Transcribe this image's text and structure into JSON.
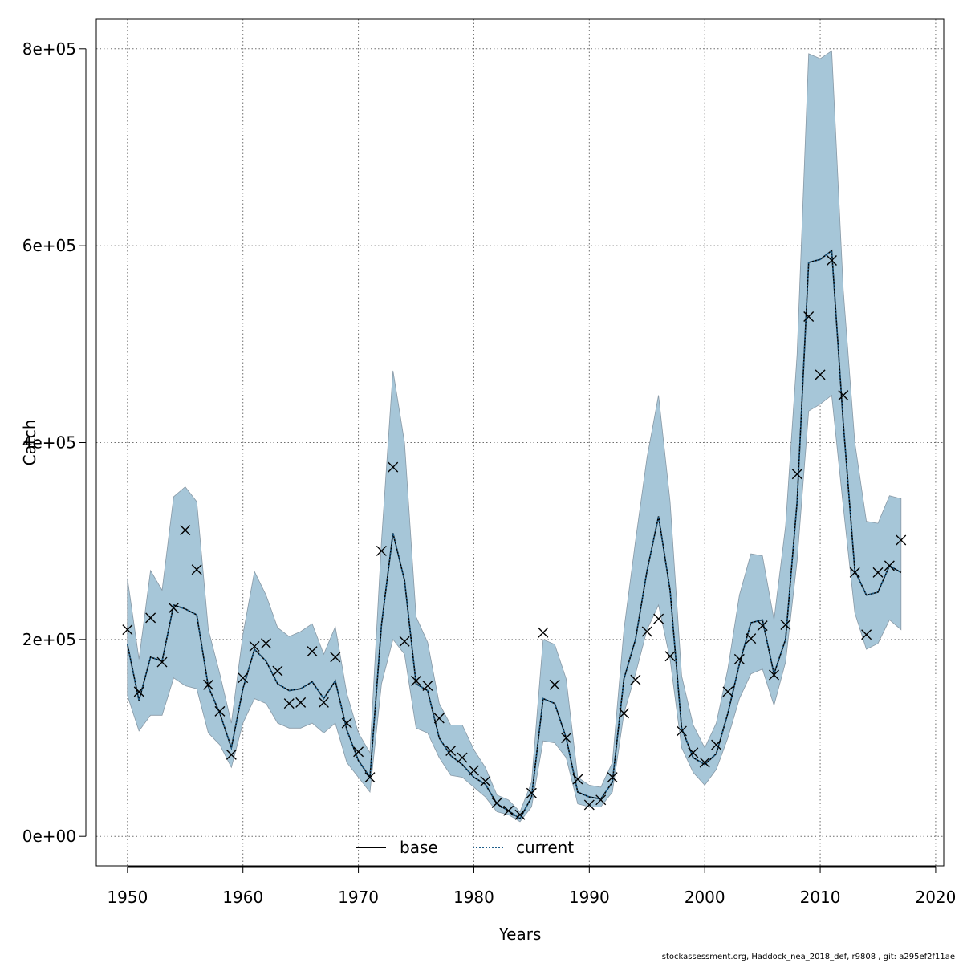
{
  "chart_data": {
    "type": "line",
    "xlabel": "Years",
    "ylabel": "Catch",
    "xlim": [
      1947.3,
      2020.7
    ],
    "ylim": [
      -30000,
      830000
    ],
    "x_ticks": [
      1950,
      1960,
      1970,
      1980,
      1990,
      2000,
      2010,
      2020
    ],
    "x_tick_labels": [
      "1950",
      "1960",
      "1970",
      "1980",
      "1990",
      "2000",
      "2010",
      "2020"
    ],
    "y_ticks": [
      0,
      200000,
      400000,
      600000,
      800000
    ],
    "y_tick_labels": [
      "0e+00",
      "2e+05",
      "4e+05",
      "6e+05",
      "8e+05"
    ],
    "grid": true,
    "legend_position": "bottom-center",
    "legend": [
      {
        "label": "base",
        "style": "solid",
        "color": "#000000"
      },
      {
        "label": "current",
        "style": "dotted",
        "color": "#1f5f8b"
      }
    ],
    "band_color": "#a6c6d8",
    "band_edge_color": "#8899a6",
    "years": [
      1950,
      1951,
      1952,
      1953,
      1954,
      1955,
      1956,
      1957,
      1958,
      1959,
      1960,
      1961,
      1962,
      1963,
      1964,
      1965,
      1966,
      1967,
      1968,
      1969,
      1970,
      1971,
      1972,
      1973,
      1974,
      1975,
      1976,
      1977,
      1978,
      1979,
      1980,
      1981,
      1982,
      1983,
      1984,
      1985,
      1986,
      1987,
      1988,
      1989,
      1990,
      1991,
      1992,
      1993,
      1994,
      1995,
      1996,
      1997,
      1998,
      1999,
      2000,
      2001,
      2002,
      2003,
      2004,
      2005,
      2006,
      2007,
      2008,
      2009,
      2010,
      2011,
      2012,
      2013,
      2014,
      2015,
      2016,
      2017
    ],
    "series": [
      {
        "name": "current",
        "values": [
          195000,
          138000,
          182000,
          178000,
          235000,
          231000,
          225000,
          152000,
          125000,
          90000,
          150000,
          190000,
          178000,
          155000,
          148000,
          150000,
          157000,
          140000,
          158000,
          108000,
          77000,
          60000,
          215000,
          308000,
          260000,
          155000,
          148000,
          100000,
          82000,
          73000,
          60000,
          53000,
          33000,
          26000,
          18000,
          40000,
          140000,
          135000,
          100000,
          45000,
          40000,
          38000,
          55000,
          160000,
          200000,
          270000,
          325000,
          250000,
          110000,
          80000,
          73000,
          84000,
          125000,
          175000,
          217000,
          220000,
          165000,
          200000,
          340000,
          583000,
          586000,
          595000,
          420000,
          270000,
          245000,
          248000,
          275000,
          268000
        ]
      }
    ],
    "interval_lower": [
      143000,
      107000,
      123000,
      123000,
      161000,
      153000,
      150000,
      105000,
      93000,
      70000,
      115000,
      140000,
      135000,
      115000,
      110000,
      110000,
      115000,
      105000,
      115000,
      75000,
      60000,
      45000,
      155000,
      200000,
      185000,
      110000,
      105000,
      80000,
      62000,
      60000,
      50000,
      40000,
      25000,
      22000,
      15000,
      30000,
      97000,
      95000,
      80000,
      33000,
      30000,
      30000,
      45000,
      125000,
      165000,
      210000,
      235000,
      180000,
      90000,
      65000,
      52000,
      68000,
      100000,
      140000,
      165000,
      170000,
      133000,
      177000,
      280000,
      432000,
      439000,
      448000,
      335000,
      227000,
      190000,
      196000,
      220000,
      210000
    ],
    "interval_upper": [
      262000,
      180000,
      270000,
      250000,
      345000,
      355000,
      340000,
      210000,
      165000,
      115000,
      205000,
      269000,
      245000,
      212000,
      203000,
      208000,
      216000,
      185000,
      213000,
      145000,
      105000,
      85000,
      300000,
      473000,
      400000,
      223000,
      197000,
      135000,
      113000,
      113000,
      88000,
      70000,
      42000,
      37000,
      25000,
      55000,
      200000,
      195000,
      160000,
      60000,
      52000,
      50000,
      75000,
      210000,
      300000,
      385000,
      448000,
      340000,
      163000,
      113000,
      90000,
      115000,
      170000,
      245000,
      287000,
      285000,
      220000,
      315000,
      490000,
      795000,
      790000,
      798000,
      555000,
      400000,
      320000,
      318000,
      346000,
      343000
    ],
    "points": [
      210000,
      147000,
      222000,
      177000,
      232000,
      311000,
      271000,
      154000,
      127000,
      83000,
      161000,
      193000,
      196000,
      168000,
      135000,
      136000,
      188000,
      136000,
      182000,
      115000,
      86000,
      60000,
      290000,
      375000,
      198000,
      158000,
      153000,
      120000,
      87000,
      80000,
      67000,
      56000,
      34000,
      26000,
      22000,
      44000,
      207000,
      154000,
      100000,
      58000,
      32000,
      37000,
      60000,
      125000,
      159000,
      208000,
      221000,
      183000,
      107000,
      85000,
      75000,
      93000,
      147000,
      180000,
      201000,
      214000,
      164000,
      215000,
      368000,
      528000,
      469000,
      585000,
      448000,
      268000,
      205000,
      268000,
      275000,
      301000
    ]
  },
  "footer": {
    "text": "stockassessment.org, Haddock_nea_2018_def, r9808 , git: a295ef2f11ae"
  }
}
